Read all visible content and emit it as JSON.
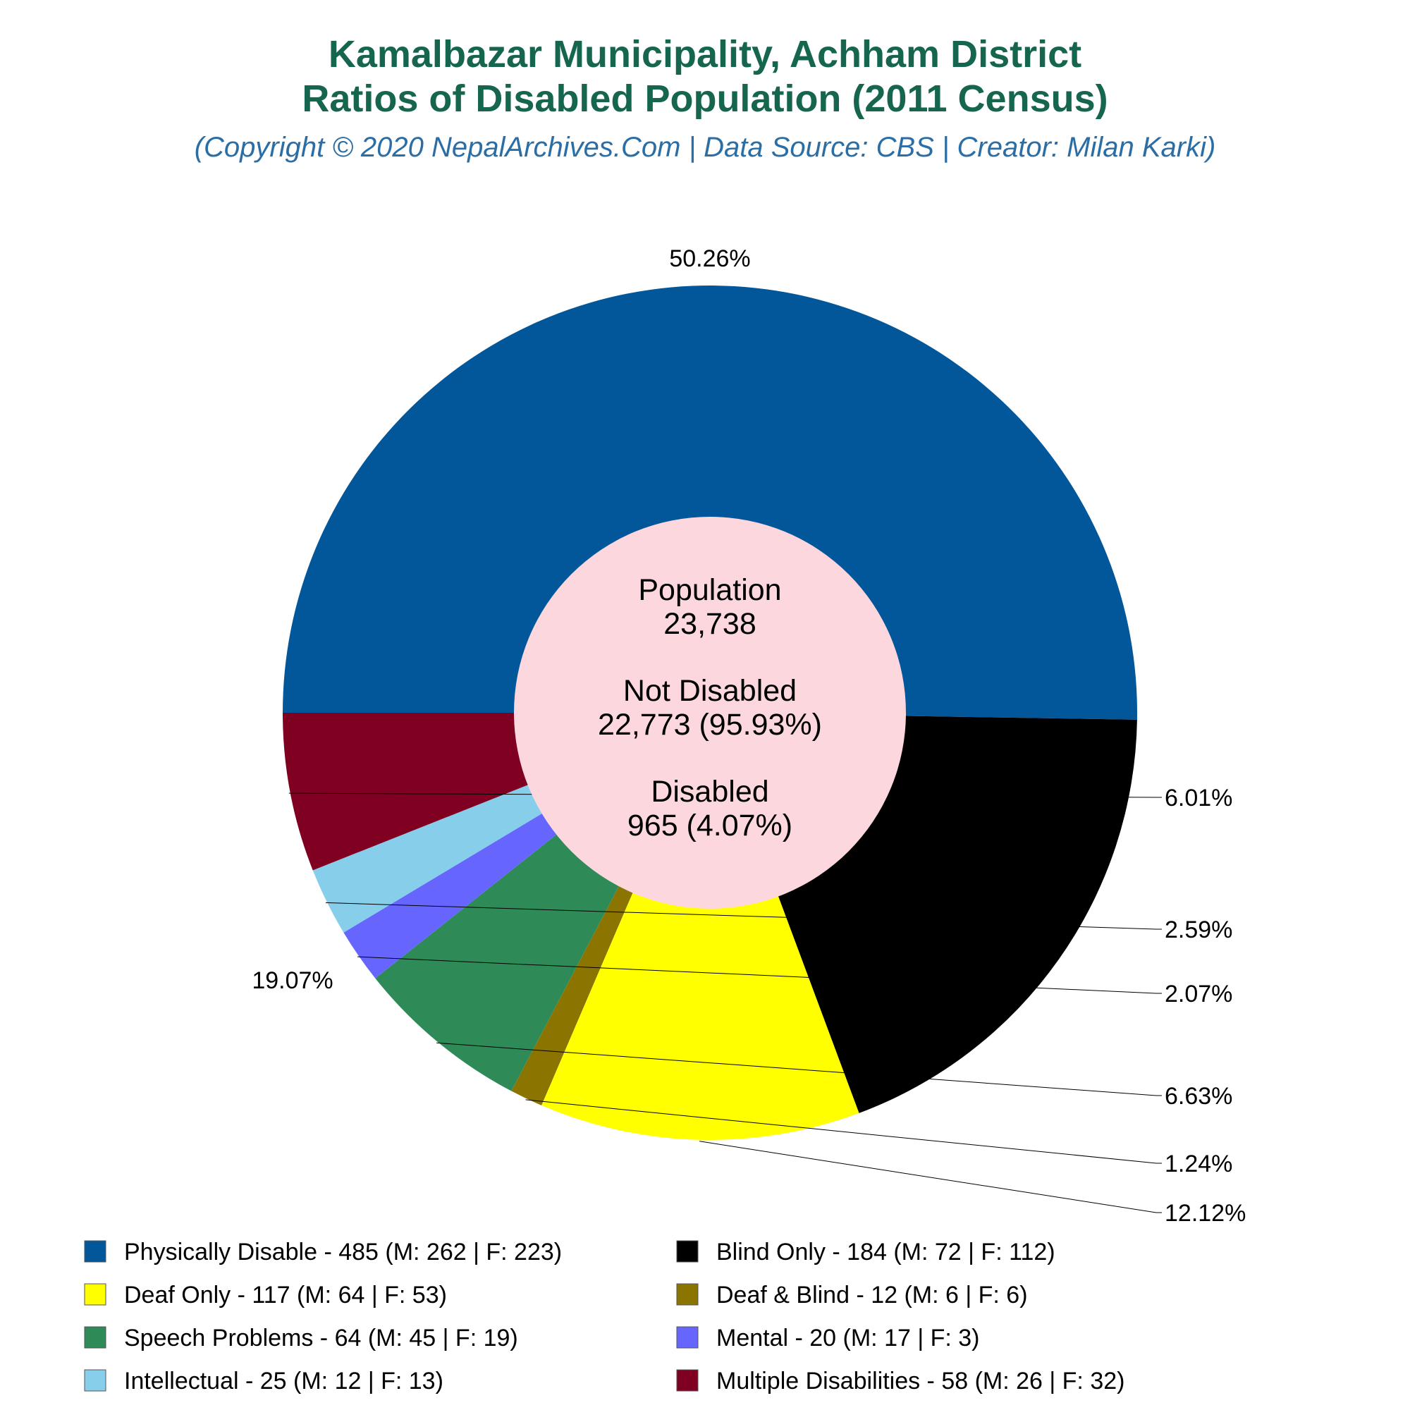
{
  "header": {
    "title_line1": "Kamalbazar Municipality, Achham District",
    "title_line2": "Ratios of Disabled Population (2011 Census)",
    "subtitle": "(Copyright © 2020 NepalArchives.Com | Data Source: CBS | Creator: Milan Karki)"
  },
  "center": {
    "population_label": "Population",
    "population_value": "23,738",
    "not_disabled_label": "Not Disabled",
    "not_disabled_value": "22,773 (95.93%)",
    "disabled_label": "Disabled",
    "disabled_value": "965 (4.07%)"
  },
  "chart_data": {
    "type": "pie",
    "hole": true,
    "categories": [
      "Physically Disable",
      "Blind Only",
      "Deaf Only",
      "Deaf & Blind",
      "Speech Problems",
      "Mental",
      "Intellectual",
      "Multiple Disabilities"
    ],
    "values": [
      485,
      184,
      117,
      12,
      64,
      20,
      25,
      58
    ],
    "percent_labels": [
      "50.26%",
      "19.07%",
      "12.12%",
      "1.24%",
      "6.63%",
      "2.07%",
      "2.59%",
      "6.01%"
    ],
    "colors": [
      "#02579b",
      "#000000",
      "#ffff00",
      "#8b7500",
      "#2e8b57",
      "#6666ff",
      "#87ceeb",
      "#7f0020"
    ],
    "center_color": "#fcd7de",
    "legend_labels": [
      "Physically Disable - 485 (M: 262 | F: 223)",
      "Blind Only - 184 (M: 72 | F: 112)",
      "Deaf Only - 117 (M: 64 | F: 53)",
      "Deaf & Blind - 12 (M: 6 | F: 6)",
      "Speech Problems - 64 (M: 45 | F: 19)",
      "Mental - 20 (M: 17 | F: 3)",
      "Intellectual - 25 (M: 12 | F: 13)",
      "Multiple Disabilities - 58 (M: 26 | F: 32)"
    ],
    "legend_placement": "bottom",
    "male_values": [
      262,
      72,
      64,
      6,
      45,
      17,
      12,
      26
    ],
    "female_values": [
      223,
      112,
      53,
      6,
      19,
      3,
      13,
      32
    ]
  }
}
